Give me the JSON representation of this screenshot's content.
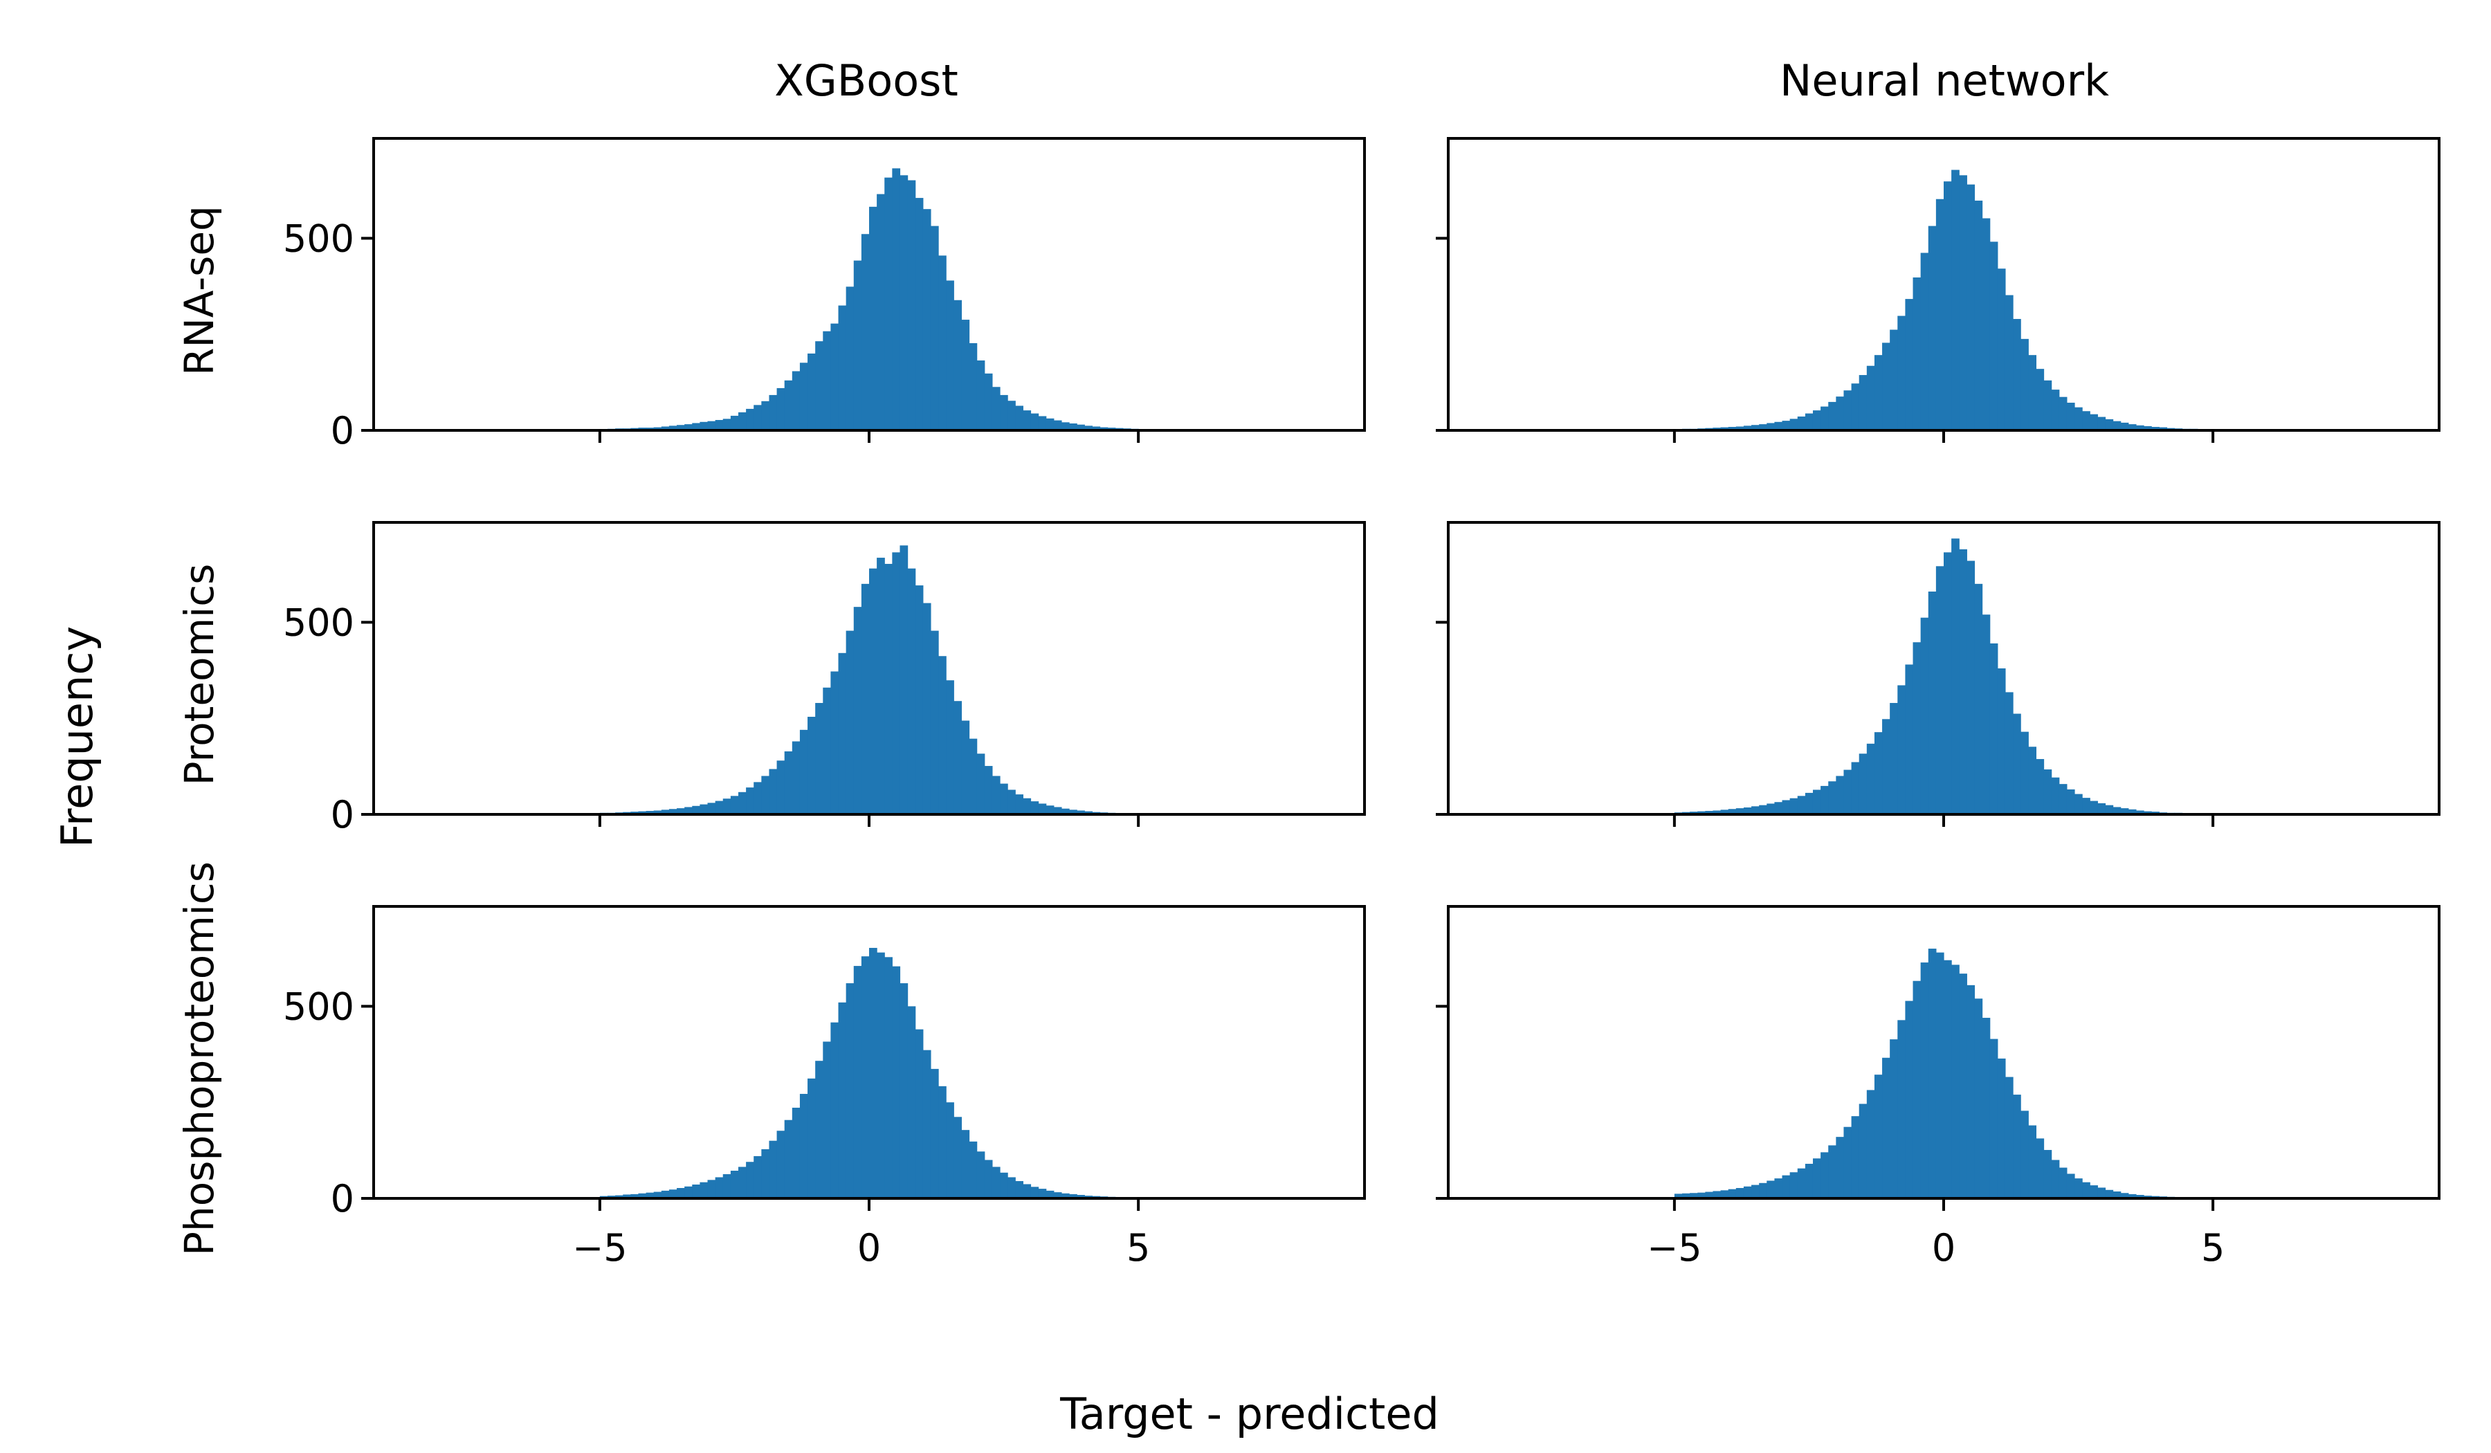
{
  "figure": {
    "supxlabel": "Target - predicted",
    "supylabel": "Frequency",
    "bar_color": "#1f77b4",
    "column_titles": [
      "XGBoost",
      "Neural network"
    ],
    "row_labels": [
      "RNA-seq",
      "Proteomics",
      "Phosphoproteomics"
    ]
  },
  "chart_data": [
    {
      "type": "histogram",
      "model": "XGBoost",
      "dataset": "RNA-seq",
      "xlim": [
        -9.2,
        9.2
      ],
      "ylim": [
        0,
        760
      ],
      "xticks": [
        -5,
        0,
        5
      ],
      "xtick_labels": [
        "−5",
        "0",
        "5"
      ],
      "yticks": [
        0,
        500
      ],
      "ytick_labels": [
        "0",
        "500"
      ],
      "bin_range": [
        -5.0,
        5.0
      ],
      "bin_counts": [
        3,
        4,
        5,
        5,
        6,
        7,
        7,
        8,
        10,
        12,
        14,
        16,
        19,
        22,
        24,
        27,
        30,
        38,
        47,
        56,
        66,
        76,
        92,
        110,
        130,
        154,
        176,
        200,
        232,
        258,
        278,
        325,
        374,
        442,
        511,
        582,
        615,
        658,
        682,
        664,
        651,
        605,
        576,
        532,
        455,
        390,
        339,
        288,
        227,
        182,
        148,
        113,
        92,
        77,
        64,
        52,
        44,
        37,
        31,
        26,
        21,
        18,
        15,
        12,
        10,
        8,
        7,
        6,
        5,
        4
      ]
    },
    {
      "type": "histogram",
      "model": "Neural network",
      "dataset": "RNA-seq",
      "xlim": [
        -9.2,
        9.2
      ],
      "ylim": [
        0,
        760
      ],
      "xticks": [
        -5,
        0,
        5
      ],
      "xtick_labels": [
        "−5",
        "0",
        "5"
      ],
      "yticks": [
        0,
        500
      ],
      "ytick_labels": [
        "0",
        "500"
      ],
      "bin_range": [
        -5.0,
        5.0
      ],
      "bin_counts": [
        3,
        4,
        4,
        5,
        6,
        7,
        8,
        9,
        10,
        12,
        14,
        16,
        19,
        22,
        25,
        30,
        36,
        44,
        52,
        62,
        74,
        88,
        104,
        122,
        144,
        168,
        196,
        228,
        262,
        298,
        342,
        398,
        462,
        532,
        602,
        648,
        678,
        664,
        640,
        598,
        552,
        491,
        421,
        352,
        290,
        238,
        196,
        160,
        130,
        106,
        87,
        72,
        60,
        50,
        42,
        35,
        29,
        24,
        20,
        16,
        13,
        11,
        9,
        8,
        6,
        5,
        4,
        4,
        3,
        3
      ]
    },
    {
      "type": "histogram",
      "model": "XGBoost",
      "dataset": "Proteomics",
      "xlim": [
        -9.2,
        9.2
      ],
      "ylim": [
        0,
        760
      ],
      "xticks": [
        -5,
        0,
        5
      ],
      "xtick_labels": [
        "−5",
        "0",
        "5"
      ],
      "yticks": [
        0,
        500
      ],
      "ytick_labels": [
        "0",
        "500"
      ],
      "bin_range": [
        -5.0,
        5.0
      ],
      "bin_counts": [
        4,
        4,
        5,
        6,
        7,
        8,
        9,
        10,
        12,
        14,
        16,
        19,
        22,
        26,
        30,
        35,
        41,
        48,
        58,
        70,
        84,
        100,
        118,
        140,
        164,
        190,
        220,
        254,
        290,
        330,
        372,
        420,
        478,
        540,
        600,
        640,
        668,
        652,
        682,
        700,
        640,
        596,
        550,
        478,
        412,
        349,
        295,
        244,
        197,
        158,
        126,
        100,
        80,
        64,
        52,
        42,
        34,
        28,
        23,
        19,
        15,
        12,
        10,
        8,
        6,
        5,
        4,
        3,
        3,
        2
      ]
    },
    {
      "type": "histogram",
      "model": "Neural network",
      "dataset": "Proteomics",
      "xlim": [
        -9.2,
        9.2
      ],
      "ylim": [
        0,
        760
      ],
      "xticks": [
        -5,
        0,
        5
      ],
      "xtick_labels": [
        "−5",
        "0",
        "5"
      ],
      "yticks": [
        0,
        500
      ],
      "ytick_labels": [
        "0",
        "500"
      ],
      "bin_range": [
        -5.0,
        5.0
      ],
      "bin_counts": [
        5,
        6,
        7,
        8,
        9,
        10,
        12,
        14,
        16,
        18,
        21,
        24,
        28,
        32,
        37,
        42,
        48,
        56,
        64,
        74,
        86,
        100,
        116,
        136,
        158,
        184,
        214,
        248,
        290,
        336,
        390,
        448,
        512,
        580,
        646,
        682,
        718,
        690,
        660,
        600,
        520,
        445,
        380,
        318,
        262,
        215,
        176,
        144,
        117,
        96,
        79,
        65,
        53,
        43,
        35,
        29,
        24,
        19,
        16,
        13,
        10,
        8,
        7,
        5,
        4,
        4,
        3,
        2,
        2,
        2
      ]
    },
    {
      "type": "histogram",
      "model": "XGBoost",
      "dataset": "Phosphoproteomics",
      "xlim": [
        -9.2,
        9.2
      ],
      "ylim": [
        0,
        760
      ],
      "xticks": [
        -5,
        0,
        5
      ],
      "xtick_labels": [
        "−5",
        "0",
        "5"
      ],
      "yticks": [
        0,
        500
      ],
      "ytick_labels": [
        "0",
        "500"
      ],
      "bin_range": [
        -5.0,
        5.0
      ],
      "bin_counts": [
        6,
        7,
        8,
        10,
        11,
        13,
        15,
        17,
        20,
        23,
        27,
        31,
        36,
        42,
        48,
        55,
        63,
        72,
        82,
        95,
        110,
        128,
        150,
        176,
        204,
        236,
        272,
        312,
        358,
        408,
        458,
        510,
        560,
        605,
        630,
        652,
        640,
        628,
        604,
        560,
        500,
        440,
        386,
        337,
        292,
        250,
        212,
        178,
        148,
        122,
        100,
        82,
        67,
        55,
        45,
        37,
        30,
        25,
        20,
        16,
        13,
        11,
        9,
        7,
        6,
        5,
        4,
        3,
        3,
        2
      ]
    },
    {
      "type": "histogram",
      "model": "Neural network",
      "dataset": "Phosphoproteomics",
      "xlim": [
        -9.2,
        9.2
      ],
      "ylim": [
        0,
        760
      ],
      "xticks": [
        -5,
        0,
        5
      ],
      "xtick_labels": [
        "−5",
        "0",
        "5"
      ],
      "yticks": [
        0,
        500
      ],
      "ytick_labels": [
        "0",
        "500"
      ],
      "bin_range": [
        -5.0,
        5.0
      ],
      "bin_counts": [
        12,
        13,
        14,
        15,
        17,
        19,
        21,
        24,
        27,
        31,
        35,
        40,
        46,
        52,
        60,
        68,
        78,
        90,
        104,
        120,
        138,
        160,
        186,
        214,
        246,
        282,
        322,
        366,
        414,
        464,
        514,
        566,
        614,
        650,
        640,
        620,
        608,
        585,
        555,
        520,
        470,
        415,
        364,
        316,
        270,
        228,
        190,
        156,
        126,
        100,
        80,
        64,
        52,
        42,
        34,
        28,
        22,
        18,
        14,
        11,
        9,
        7,
        6,
        5,
        4,
        3,
        3,
        2,
        2,
        1
      ]
    }
  ]
}
